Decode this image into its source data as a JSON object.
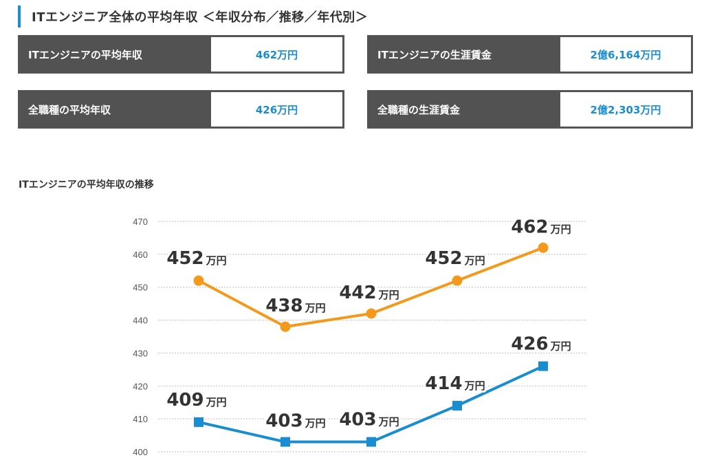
{
  "header": {
    "title": "ITエンジニア全体の平均年収 ＜年収分布／推移／年代別＞"
  },
  "stats": [
    {
      "label": "ITエンジニアの平均年収",
      "value": "462万円"
    },
    {
      "label": "ITエンジニアの生涯賃金",
      "value": "2億6,164万円"
    },
    {
      "label": "全職種の平均年収",
      "value": "426万円"
    },
    {
      "label": "全職種の生涯賃金",
      "value": "2億2,303万円"
    }
  ],
  "chart_title": "ITエンジニアの平均年収の推移",
  "chart_data": {
    "type": "line",
    "title": "ITエンジニアの平均年収の推移",
    "xlabel": "",
    "ylabel": "",
    "ylim": [
      400,
      470
    ],
    "yticks": [
      400,
      410,
      420,
      430,
      440,
      450,
      460,
      470
    ],
    "grid": true,
    "unit": "万円",
    "points": 5,
    "series": [
      {
        "values": [
          452,
          438,
          442,
          452,
          462
        ],
        "color": "#f39a1d",
        "marker": "circle"
      },
      {
        "values": [
          409,
          403,
          403,
          414,
          426
        ],
        "color": "#1a8dd1",
        "marker": "square"
      }
    ]
  }
}
